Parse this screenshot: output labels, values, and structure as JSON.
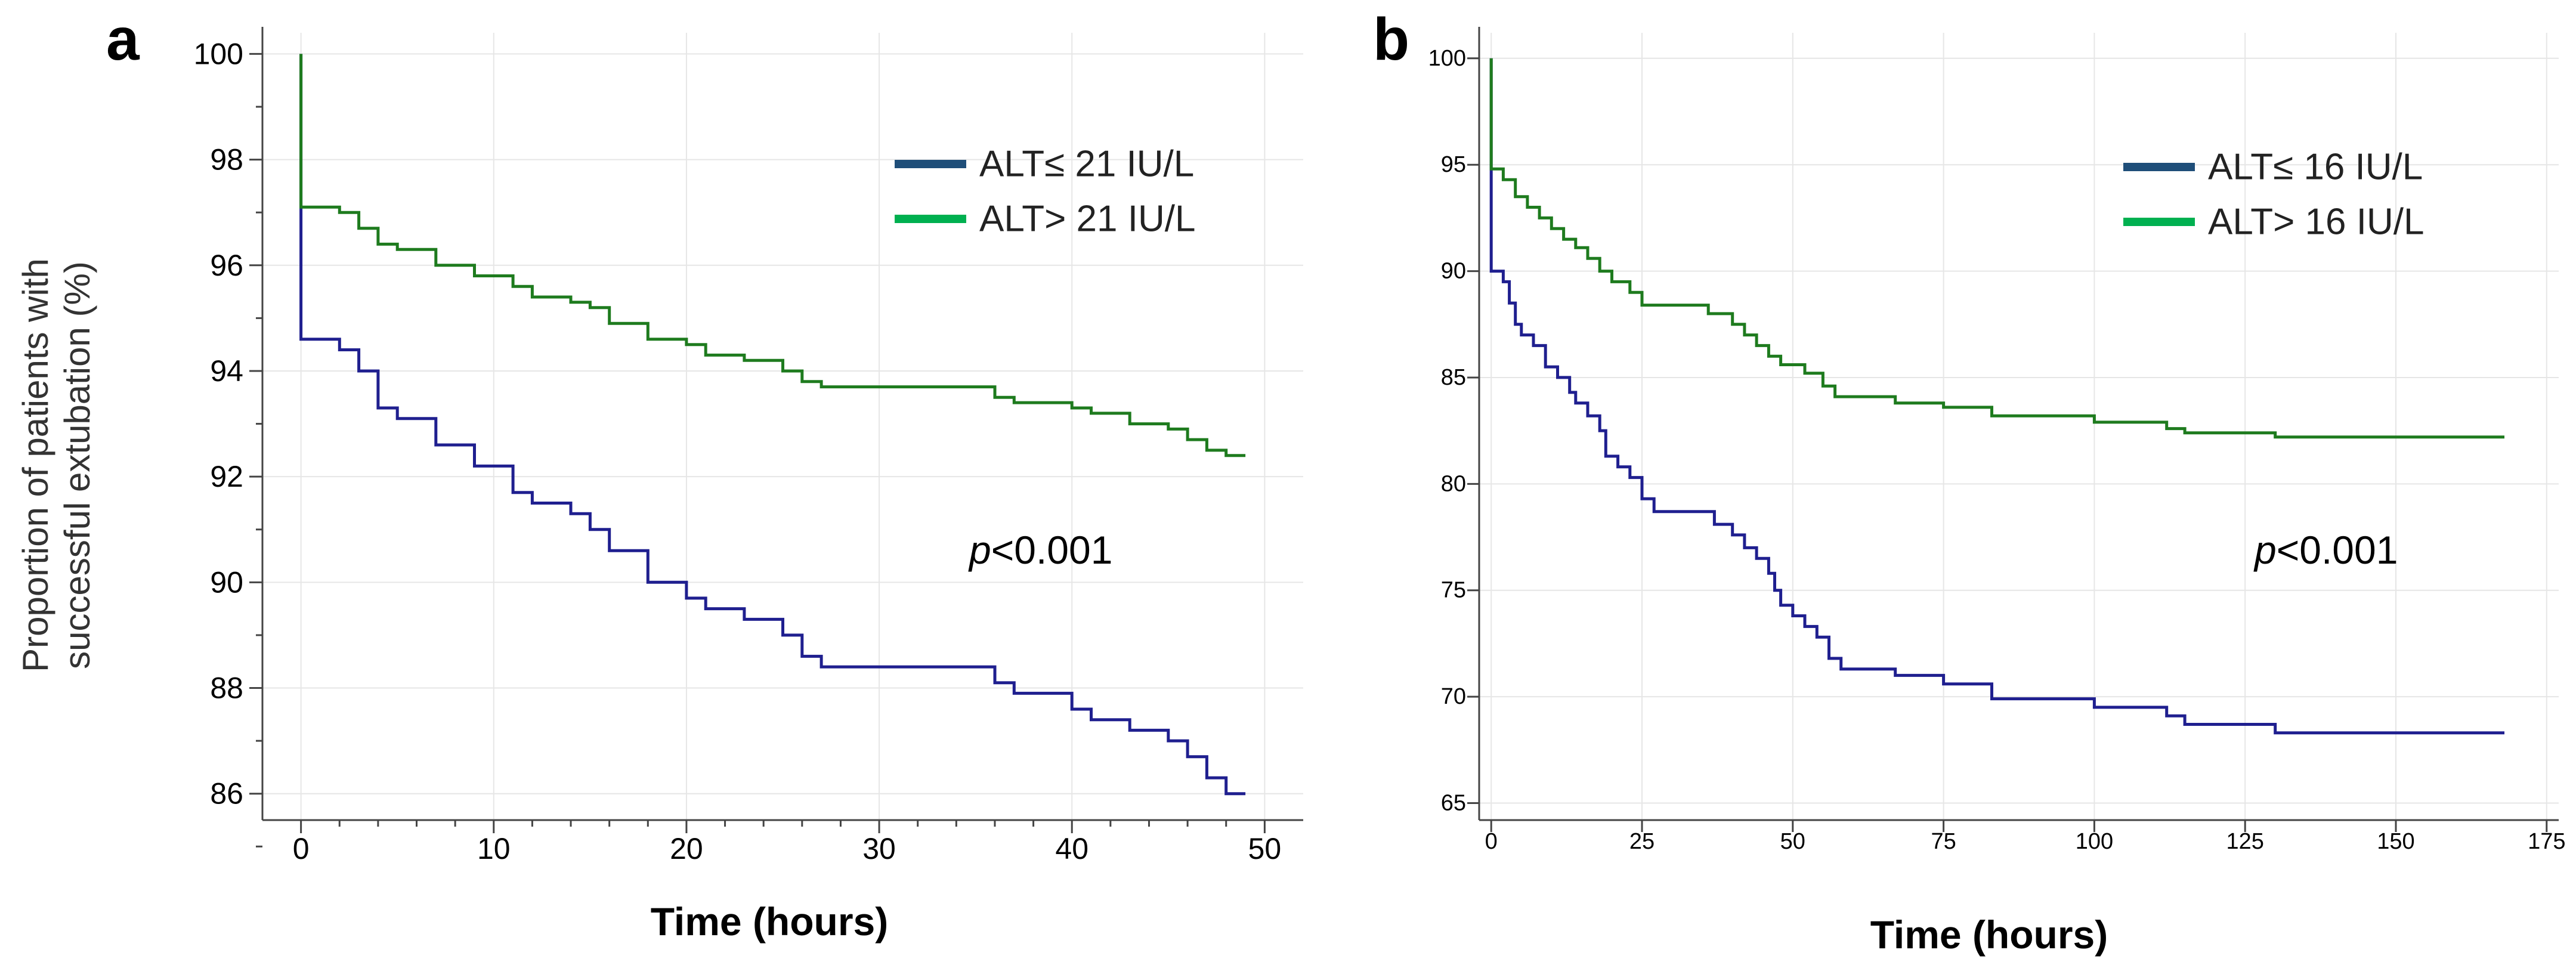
{
  "chart_data": [
    {
      "type": "line",
      "panel_label": "a",
      "title": "",
      "xlabel": "Time (hours)",
      "ylabel_lines": [
        "Proportion of patients with",
        "successful extubation (%)"
      ],
      "xlim": [
        -2,
        52
      ],
      "ylim": [
        85.5,
        100.4
      ],
      "xticks": [
        0,
        10,
        20,
        30,
        40,
        50
      ],
      "yticks": [
        86,
        88,
        90,
        92,
        94,
        96,
        98,
        100
      ],
      "grid": true,
      "legend_position": "top-right",
      "annotation": {
        "italic": "p",
        "rest": "<0.001"
      },
      "series": [
        {
          "name": "ALT≤ 21 IU/L",
          "legend_color": "#1f4e79",
          "line_color": "#1f1f8f",
          "points": [
            [
              0,
              100
            ],
            [
              0,
              94.6
            ],
            [
              2,
              94.6
            ],
            [
              2,
              94.4
            ],
            [
              3,
              94.4
            ],
            [
              3,
              94.0
            ],
            [
              4,
              94.0
            ],
            [
              4,
              93.3
            ],
            [
              5,
              93.3
            ],
            [
              5,
              93.1
            ],
            [
              7,
              93.1
            ],
            [
              7,
              92.6
            ],
            [
              9,
              92.6
            ],
            [
              9,
              92.2
            ],
            [
              11,
              92.2
            ],
            [
              11,
              91.7
            ],
            [
              12,
              91.7
            ],
            [
              12,
              91.5
            ],
            [
              14,
              91.5
            ],
            [
              14,
              91.3
            ],
            [
              15,
              91.3
            ],
            [
              15,
              91.0
            ],
            [
              16,
              91.0
            ],
            [
              16,
              90.6
            ],
            [
              18,
              90.6
            ],
            [
              18,
              90.0
            ],
            [
              20,
              90.0
            ],
            [
              20,
              89.7
            ],
            [
              21,
              89.7
            ],
            [
              21,
              89.5
            ],
            [
              23,
              89.5
            ],
            [
              23,
              89.3
            ],
            [
              25,
              89.3
            ],
            [
              25,
              89.0
            ],
            [
              26,
              89.0
            ],
            [
              26,
              88.6
            ],
            [
              27,
              88.6
            ],
            [
              27,
              88.4
            ],
            [
              36,
              88.4
            ],
            [
              36,
              88.1
            ],
            [
              37,
              88.1
            ],
            [
              37,
              87.9
            ],
            [
              40,
              87.9
            ],
            [
              40,
              87.6
            ],
            [
              41,
              87.6
            ],
            [
              41,
              87.4
            ],
            [
              43,
              87.4
            ],
            [
              43,
              87.2
            ],
            [
              45,
              87.2
            ],
            [
              45,
              87.0
            ],
            [
              46,
              87.0
            ],
            [
              46,
              86.7
            ],
            [
              47,
              86.7
            ],
            [
              47,
              86.3
            ],
            [
              48,
              86.3
            ],
            [
              48,
              86.0
            ],
            [
              49,
              86.0
            ]
          ]
        },
        {
          "name": "ALT> 21 IU/L",
          "legend_color": "#00b050",
          "line_color": "#1e7b1e",
          "points": [
            [
              0,
              100
            ],
            [
              0,
              97.1
            ],
            [
              2,
              97.1
            ],
            [
              2,
              97.0
            ],
            [
              3,
              97.0
            ],
            [
              3,
              96.7
            ],
            [
              4,
              96.7
            ],
            [
              4,
              96.4
            ],
            [
              5,
              96.4
            ],
            [
              5,
              96.3
            ],
            [
              7,
              96.3
            ],
            [
              7,
              96.0
            ],
            [
              9,
              96.0
            ],
            [
              9,
              95.8
            ],
            [
              11,
              95.8
            ],
            [
              11,
              95.6
            ],
            [
              12,
              95.6
            ],
            [
              12,
              95.4
            ],
            [
              14,
              95.4
            ],
            [
              14,
              95.3
            ],
            [
              15,
              95.3
            ],
            [
              15,
              95.2
            ],
            [
              16,
              95.2
            ],
            [
              16,
              94.9
            ],
            [
              18,
              94.9
            ],
            [
              18,
              94.6
            ],
            [
              20,
              94.6
            ],
            [
              20,
              94.5
            ],
            [
              21,
              94.5
            ],
            [
              21,
              94.3
            ],
            [
              23,
              94.3
            ],
            [
              23,
              94.2
            ],
            [
              25,
              94.2
            ],
            [
              25,
              94.0
            ],
            [
              26,
              94.0
            ],
            [
              26,
              93.8
            ],
            [
              27,
              93.8
            ],
            [
              27,
              93.7
            ],
            [
              36,
              93.7
            ],
            [
              36,
              93.5
            ],
            [
              37,
              93.5
            ],
            [
              37,
              93.4
            ],
            [
              40,
              93.4
            ],
            [
              40,
              93.3
            ],
            [
              41,
              93.3
            ],
            [
              41,
              93.2
            ],
            [
              43,
              93.2
            ],
            [
              43,
              93.0
            ],
            [
              45,
              93.0
            ],
            [
              45,
              92.9
            ],
            [
              46,
              92.9
            ],
            [
              46,
              92.7
            ],
            [
              47,
              92.7
            ],
            [
              47,
              92.5
            ],
            [
              48,
              92.5
            ],
            [
              48,
              92.4
            ],
            [
              49,
              92.4
            ]
          ]
        }
      ]
    },
    {
      "type": "line",
      "panel_label": "b",
      "title": "",
      "xlabel": "Time (hours)",
      "ylabel_lines": [],
      "xlim": [
        -2,
        177
      ],
      "ylim": [
        64.2,
        101.2
      ],
      "xticks": [
        0,
        25,
        50,
        75,
        100,
        125,
        150,
        175
      ],
      "yticks": [
        65,
        70,
        75,
        80,
        85,
        90,
        95,
        100
      ],
      "grid": true,
      "legend_position": "top-right",
      "annotation": {
        "italic": "p",
        "rest": "<0.001"
      },
      "series": [
        {
          "name": "ALT≤ 16 IU/L",
          "legend_color": "#1f4e79",
          "line_color": "#1f1f8f",
          "points": [
            [
              0,
              100
            ],
            [
              0,
              90
            ],
            [
              2,
              90
            ],
            [
              2,
              89.5
            ],
            [
              3,
              89.5
            ],
            [
              3,
              88.5
            ],
            [
              4,
              88.5
            ],
            [
              4,
              87.5
            ],
            [
              5,
              87.5
            ],
            [
              5,
              87
            ],
            [
              7,
              87
            ],
            [
              7,
              86.5
            ],
            [
              9,
              86.5
            ],
            [
              9,
              85.5
            ],
            [
              11,
              85.5
            ],
            [
              11,
              85
            ],
            [
              13,
              85
            ],
            [
              13,
              84.3
            ],
            [
              14,
              84.3
            ],
            [
              14,
              83.8
            ],
            [
              16,
              83.8
            ],
            [
              16,
              83.2
            ],
            [
              18,
              83.2
            ],
            [
              18,
              82.5
            ],
            [
              19,
              82.5
            ],
            [
              19,
              81.3
            ],
            [
              21,
              81.3
            ],
            [
              21,
              80.8
            ],
            [
              23,
              80.8
            ],
            [
              23,
              80.3
            ],
            [
              25,
              80.3
            ],
            [
              25,
              79.3
            ],
            [
              27,
              79.3
            ],
            [
              27,
              78.7
            ],
            [
              37,
              78.7
            ],
            [
              37,
              78.1
            ],
            [
              40,
              78.1
            ],
            [
              40,
              77.6
            ],
            [
              42,
              77.6
            ],
            [
              42,
              77
            ],
            [
              44,
              77
            ],
            [
              44,
              76.5
            ],
            [
              46,
              76.5
            ],
            [
              46,
              75.8
            ],
            [
              47,
              75.8
            ],
            [
              47,
              75
            ],
            [
              48,
              75
            ],
            [
              48,
              74.3
            ],
            [
              50,
              74.3
            ],
            [
              50,
              73.8
            ],
            [
              52,
              73.8
            ],
            [
              52,
              73.3
            ],
            [
              54,
              73.3
            ],
            [
              54,
              72.8
            ],
            [
              56,
              72.8
            ],
            [
              56,
              71.8
            ],
            [
              58,
              71.8
            ],
            [
              58,
              71.3
            ],
            [
              67,
              71.3
            ],
            [
              67,
              71
            ],
            [
              75,
              71
            ],
            [
              75,
              70.6
            ],
            [
              83,
              70.6
            ],
            [
              83,
              69.9
            ],
            [
              100,
              69.9
            ],
            [
              100,
              69.5
            ],
            [
              112,
              69.5
            ],
            [
              112,
              69.1
            ],
            [
              115,
              69.1
            ],
            [
              115,
              68.7
            ],
            [
              130,
              68.7
            ],
            [
              130,
              68.3
            ],
            [
              168,
              68.3
            ]
          ]
        },
        {
          "name": "ALT> 16 IU/L",
          "legend_color": "#00b050",
          "line_color": "#1e7b1e",
          "points": [
            [
              0,
              100
            ],
            [
              0,
              94.8
            ],
            [
              2,
              94.8
            ],
            [
              2,
              94.3
            ],
            [
              4,
              94.3
            ],
            [
              4,
              93.5
            ],
            [
              6,
              93.5
            ],
            [
              6,
              93
            ],
            [
              8,
              93
            ],
            [
              8,
              92.5
            ],
            [
              10,
              92.5
            ],
            [
              10,
              92
            ],
            [
              12,
              92
            ],
            [
              12,
              91.5
            ],
            [
              14,
              91.5
            ],
            [
              14,
              91.1
            ],
            [
              16,
              91.1
            ],
            [
              16,
              90.6
            ],
            [
              18,
              90.6
            ],
            [
              18,
              90
            ],
            [
              20,
              90
            ],
            [
              20,
              89.5
            ],
            [
              23,
              89.5
            ],
            [
              23,
              89
            ],
            [
              25,
              89
            ],
            [
              25,
              88.4
            ],
            [
              36,
              88.4
            ],
            [
              36,
              88
            ],
            [
              40,
              88
            ],
            [
              40,
              87.5
            ],
            [
              42,
              87.5
            ],
            [
              42,
              87
            ],
            [
              44,
              87
            ],
            [
              44,
              86.5
            ],
            [
              46,
              86.5
            ],
            [
              46,
              86
            ],
            [
              48,
              86
            ],
            [
              48,
              85.6
            ],
            [
              52,
              85.6
            ],
            [
              52,
              85.2
            ],
            [
              55,
              85.2
            ],
            [
              55,
              84.6
            ],
            [
              57,
              84.6
            ],
            [
              57,
              84.1
            ],
            [
              67,
              84.1
            ],
            [
              67,
              83.8
            ],
            [
              75,
              83.8
            ],
            [
              75,
              83.6
            ],
            [
              83,
              83.6
            ],
            [
              83,
              83.2
            ],
            [
              100,
              83.2
            ],
            [
              100,
              82.9
            ],
            [
              112,
              82.9
            ],
            [
              112,
              82.6
            ],
            [
              115,
              82.6
            ],
            [
              115,
              82.4
            ],
            [
              130,
              82.4
            ],
            [
              130,
              82.2
            ],
            [
              168,
              82.2
            ]
          ]
        }
      ]
    }
  ]
}
